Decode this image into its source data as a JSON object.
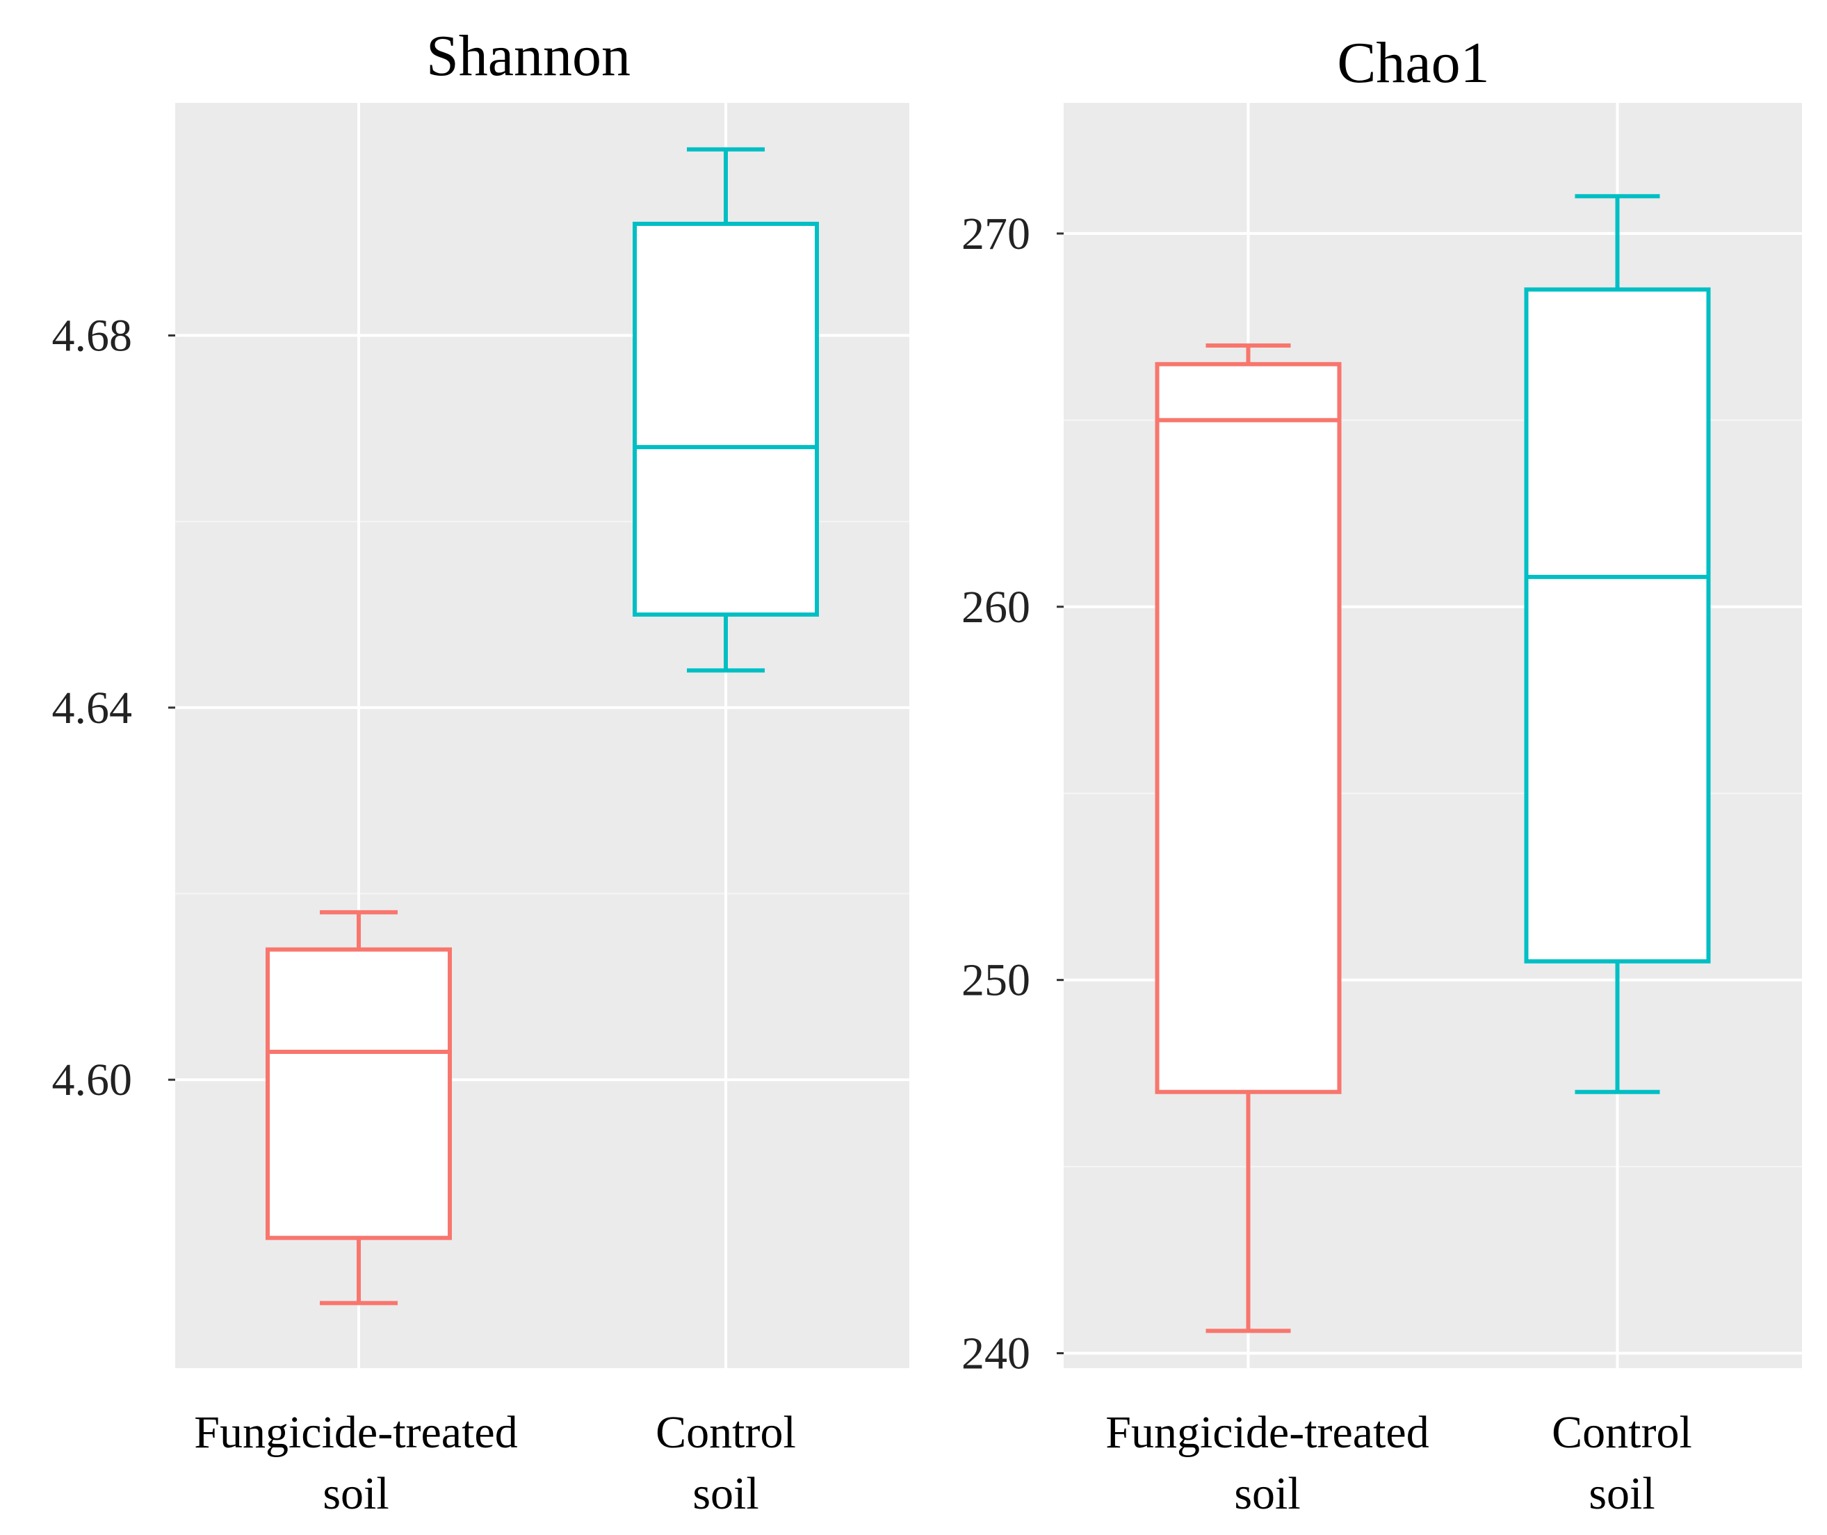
{
  "chart_data": [
    {
      "type": "boxplot",
      "title": "Shannon",
      "xlabel": "",
      "ylabel": "",
      "categories": [
        "Fungicide-treated soil",
        "Control soil"
      ],
      "category_lines": [
        [
          "Fungicide-treated",
          "soil"
        ],
        [
          "Control",
          "soil"
        ]
      ],
      "ylim": [
        4.569,
        4.705
      ],
      "yticks": [
        4.6,
        4.64,
        4.68
      ],
      "ytick_labels": [
        "4.60",
        "4.64",
        "4.68"
      ],
      "series": [
        {
          "name": "Fungicide-treated soil",
          "color": "#f8766d",
          "min": 4.576,
          "q1": 4.583,
          "median": 4.603,
          "q3": 4.614,
          "max": 4.618
        },
        {
          "name": "Control soil",
          "color": "#00bfc4",
          "min": 4.644,
          "q1": 4.65,
          "median": 4.668,
          "q3": 4.692,
          "max": 4.7
        }
      ],
      "background": "#ebebeb",
      "grid": true
    },
    {
      "type": "boxplot",
      "title": "Chao1",
      "xlabel": "",
      "ylabel": "",
      "categories": [
        "Fungicide-treated soil",
        "Control soil"
      ],
      "category_lines": [
        [
          "Fungicide-treated",
          "soil"
        ],
        [
          "Control",
          "soil"
        ]
      ],
      "ylim": [
        239.6,
        273.5
      ],
      "yticks": [
        240,
        250,
        260,
        270
      ],
      "ytick_labels": [
        "240",
        "250",
        "260",
        "270"
      ],
      "series": [
        {
          "name": "Fungicide-treated soil",
          "color": "#f8766d",
          "min": 240.6,
          "q1": 247.0,
          "median": 265.0,
          "q3": 266.5,
          "max": 267.0
        },
        {
          "name": "Control soil",
          "color": "#00bfc4",
          "min": 247.0,
          "q1": 250.5,
          "median": 260.8,
          "q3": 268.5,
          "max": 271.0
        }
      ],
      "background": "#ebebeb",
      "grid": true
    }
  ]
}
